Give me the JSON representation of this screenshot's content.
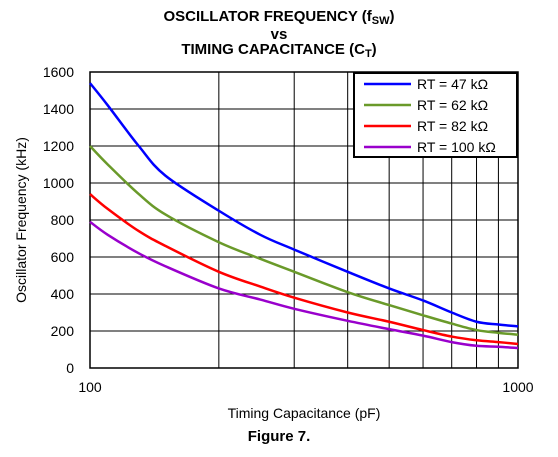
{
  "title": {
    "line1_prefix": "OSCILLATOR FREQUENCY (f",
    "line1_sub": "SW",
    "line1_suffix": ")",
    "line2": "vs",
    "line3_prefix": "TIMING CAPACITANCE (C",
    "line3_sub": "T",
    "line3_suffix": ")"
  },
  "figure_caption": "Figure 7.",
  "chart_data": {
    "type": "line",
    "xlabel": "Timing Capacitance (pF)",
    "ylabel": "Oscillator Frequency (kHz)",
    "xscale": "log",
    "xlim": [
      100,
      1000
    ],
    "ylim": [
      0,
      1600
    ],
    "xticks": [
      100,
      1000
    ],
    "xtick_labels": [
      "100",
      "1000"
    ],
    "yticks": [
      0,
      200,
      400,
      600,
      800,
      1000,
      1200,
      1400,
      1600
    ],
    "grid": true,
    "legend_position": "top-right",
    "series": [
      {
        "name": "RT = 47 kΩ",
        "color": "#0000ff",
        "x": [
          100,
          110,
          130,
          150,
          200,
          250,
          300,
          400,
          500,
          600,
          700,
          800,
          900,
          1000
        ],
        "y": [
          1540,
          1420,
          1200,
          1040,
          850,
          720,
          640,
          520,
          430,
          365,
          300,
          250,
          235,
          225
        ]
      },
      {
        "name": "RT = 62 kΩ",
        "color": "#6a9a2a",
        "x": [
          100,
          110,
          130,
          150,
          200,
          250,
          300,
          400,
          500,
          600,
          700,
          800,
          900,
          1000
        ],
        "y": [
          1200,
          1100,
          940,
          830,
          680,
          590,
          520,
          410,
          340,
          285,
          240,
          205,
          190,
          180
        ]
      },
      {
        "name": "RT = 82 kΩ",
        "color": "#ff0000",
        "x": [
          100,
          110,
          130,
          150,
          200,
          250,
          300,
          400,
          500,
          600,
          700,
          800,
          900,
          1000
        ],
        "y": [
          940,
          860,
          740,
          660,
          520,
          440,
          380,
          300,
          250,
          205,
          170,
          150,
          140,
          130
        ]
      },
      {
        "name": "RT = 100 kΩ",
        "color": "#9900cc",
        "x": [
          100,
          110,
          130,
          150,
          200,
          250,
          300,
          400,
          500,
          600,
          700,
          800,
          900,
          1000
        ],
        "y": [
          790,
          720,
          620,
          550,
          430,
          370,
          320,
          255,
          210,
          175,
          140,
          120,
          115,
          108
        ]
      }
    ]
  }
}
